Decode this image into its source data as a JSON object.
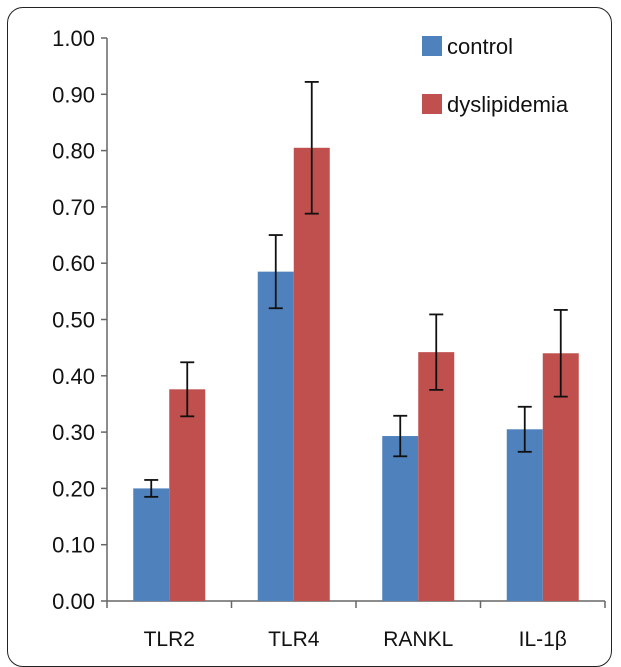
{
  "chart_data": {
    "type": "bar",
    "categories": [
      "TLR2",
      "TLR4",
      "RANKL",
      "IL-1β"
    ],
    "series": [
      {
        "name": "control",
        "color": "#4f81bd",
        "values": [
          0.2,
          0.585,
          0.293,
          0.305
        ],
        "errors": [
          0.015,
          0.065,
          0.036,
          0.04
        ]
      },
      {
        "name": "dyslipidemia",
        "color": "#c0504d",
        "values": [
          0.376,
          0.805,
          0.442,
          0.44
        ],
        "errors": [
          0.048,
          0.117,
          0.067,
          0.077
        ]
      }
    ],
    "y_ticks": [
      "0.00",
      "0.10",
      "0.20",
      "0.30",
      "0.40",
      "0.50",
      "0.60",
      "0.70",
      "0.80",
      "0.90",
      "1.00"
    ],
    "ylim": [
      0,
      1.0
    ],
    "grid": false,
    "legend_position": "top-right",
    "title": "",
    "xlabel": "",
    "ylabel": ""
  }
}
